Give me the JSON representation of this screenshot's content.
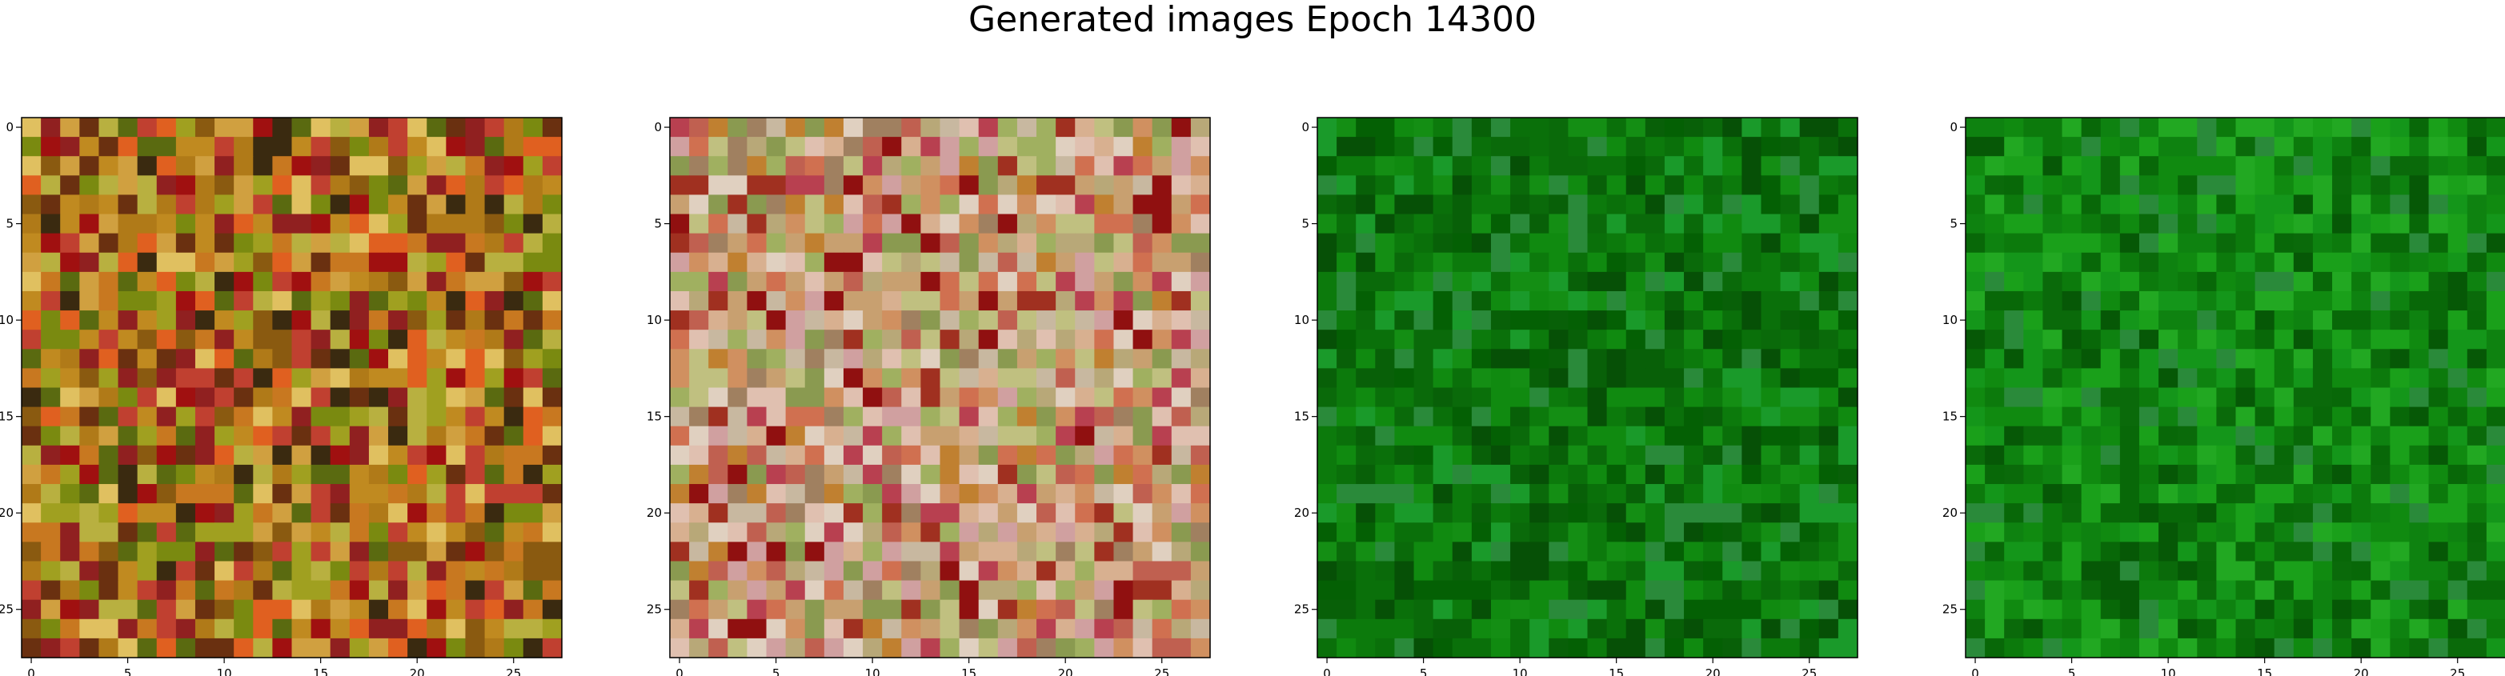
{
  "title": "Generated images Epoch 14300",
  "chart_data": [
    {
      "type": "heatmap",
      "title": "",
      "xlabel": "",
      "ylabel": "",
      "xlim": [
        -0.5,
        27.5
      ],
      "ylim": [
        27.5,
        -0.5
      ],
      "xticks": [
        0,
        5,
        10,
        15,
        20,
        25
      ],
      "yticks": [
        0,
        5,
        10,
        15,
        20,
        25
      ],
      "palette": [
        "#8a5a10",
        "#b07a18",
        "#c08a20",
        "#a0a020",
        "#7a8a10",
        "#5a6a10",
        "#c04030",
        "#a01010",
        "#d0a040",
        "#e0c060",
        "#6a3010",
        "#3a2a10",
        "#e06020",
        "#b8b040",
        "#c87820",
        "#902020"
      ],
      "grid": "28x28 pixel image (RGB), values not printed"
    },
    {
      "type": "heatmap",
      "title": "",
      "xlabel": "",
      "ylabel": "",
      "xlim": [
        -0.5,
        27.5
      ],
      "ylim": [
        27.5,
        -0.5
      ],
      "xticks": [
        0,
        5,
        10,
        15,
        20,
        25
      ],
      "yticks": [
        0,
        5,
        10,
        15,
        20,
        25
      ],
      "palette": [
        "#c8a070",
        "#d09060",
        "#b8a878",
        "#c0c080",
        "#c06050",
        "#a03020",
        "#901010",
        "#d8b090",
        "#c8b8a0",
        "#d0a0a0",
        "#a08060",
        "#e0c0b0",
        "#b84050",
        "#c08030",
        "#8a9a50",
        "#a0b060",
        "#d07050",
        "#e0d0c0"
      ],
      "grid": "28x28 pixel image (RGB), values not printed"
    },
    {
      "type": "heatmap",
      "title": "",
      "xlabel": "",
      "ylabel": "",
      "xlim": [
        -0.5,
        27.5
      ],
      "ylim": [
        27.5,
        -0.5
      ],
      "xticks": [
        0,
        5,
        10,
        15,
        20,
        25
      ],
      "yticks": [
        0,
        5,
        10,
        15,
        20,
        25
      ],
      "palette": [
        "#0a6a0a",
        "#0c7a0c",
        "#086008",
        "#108a10",
        "#065006",
        "#148e14",
        "#0a700a",
        "#1a9a2a",
        "#2a8a3a",
        "#046004"
      ],
      "grid": "28x28 pixel image (RGB), values not printed"
    },
    {
      "type": "heatmap",
      "title": "",
      "xlabel": "",
      "ylabel": "",
      "xlim": [
        -0.5,
        27.5
      ],
      "ylim": [
        27.5,
        -0.5
      ],
      "xticks": [
        0,
        5,
        10,
        15,
        20,
        25
      ],
      "yticks": [
        0,
        5,
        10,
        15,
        20,
        25
      ],
      "palette": [
        "#0c7a0c",
        "#108a10",
        "#0a6a0a",
        "#14961a",
        "#1aa01a",
        "#086808",
        "#22a822",
        "#2a8a3a",
        "#0e8210",
        "#065806"
      ],
      "grid": "28x28 pixel image (RGB), values not printed"
    }
  ]
}
